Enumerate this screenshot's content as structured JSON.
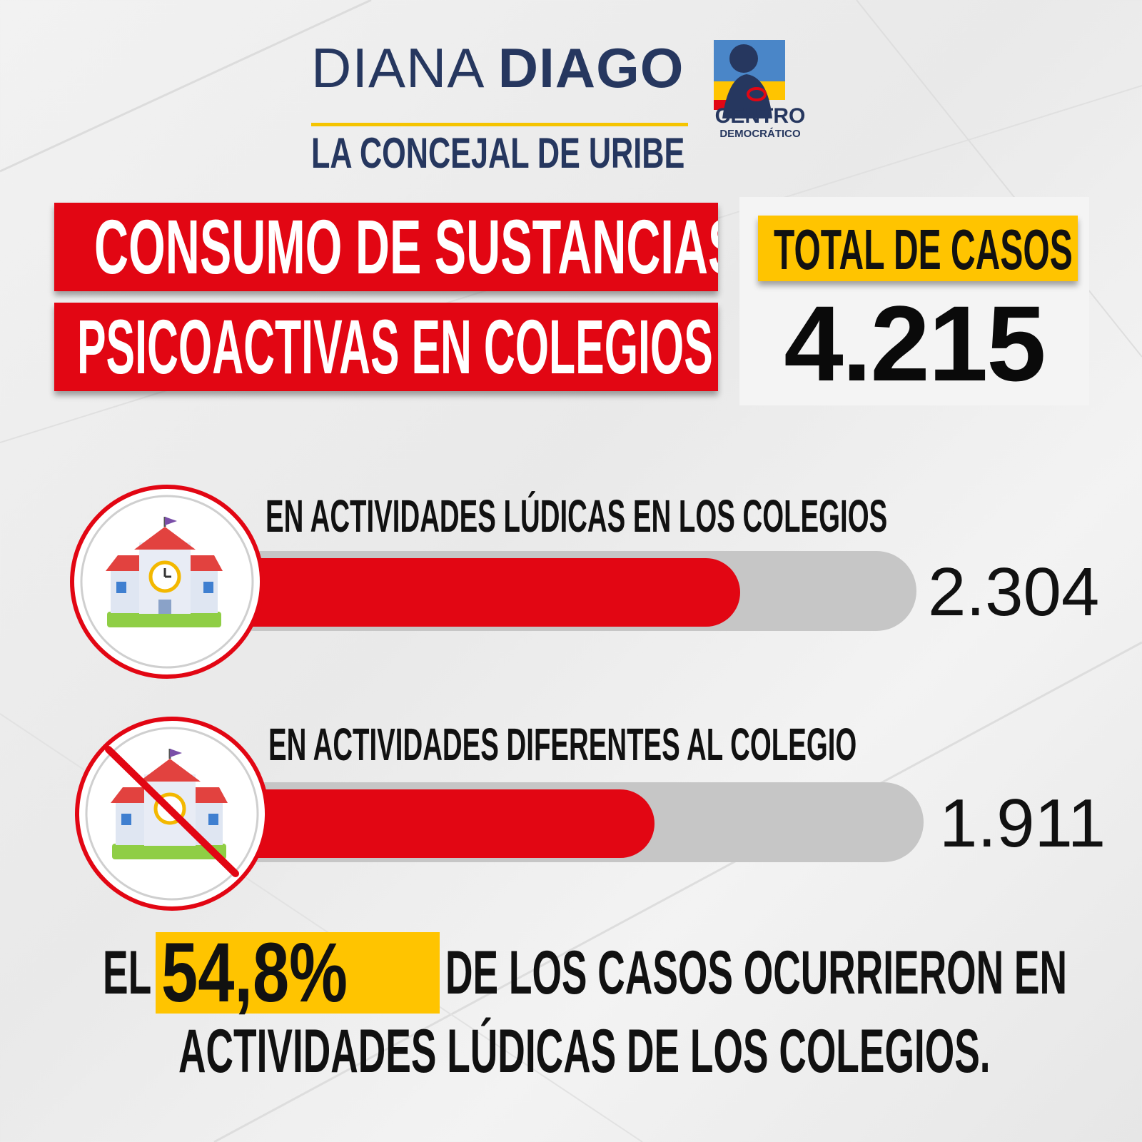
{
  "header": {
    "name_first": "DIANA",
    "name_last": "DIAGO",
    "tagline": "LA CONCEJAL DE URIBE",
    "party_line1": "CENTRO",
    "party_line2": "DEMOCRÁTICO"
  },
  "title": {
    "line1": "CONSUMO DE SUSTANCIAS",
    "line2": "PSICOACTIVAS EN COLEGIOS"
  },
  "total": {
    "label": "TOTAL DE CASOS",
    "value": "4.215"
  },
  "chart_data": {
    "type": "bar",
    "orientation": "horizontal",
    "total": 4215,
    "categories": [
      "EN ACTIVIDADES LÚDICAS EN LOS COLEGIOS",
      "EN ACTIVIDADES DIFERENTES AL COLEGIO"
    ],
    "values": [
      2304,
      1911
    ],
    "value_labels": [
      "2.304",
      "1.911"
    ],
    "icons": [
      "school-icon",
      "no-school-icon"
    ]
  },
  "footer": {
    "prefix": "EL",
    "percent": "54,8%",
    "rest_line1": "DE LOS CASOS OCURRIERON EN",
    "line2": "ACTIVIDADES LÚDICAS DE LOS COLEGIOS."
  },
  "colors": {
    "red": "#e20613",
    "yellow": "#ffc400",
    "navy": "#26375f",
    "track": "#c6c6c6"
  }
}
